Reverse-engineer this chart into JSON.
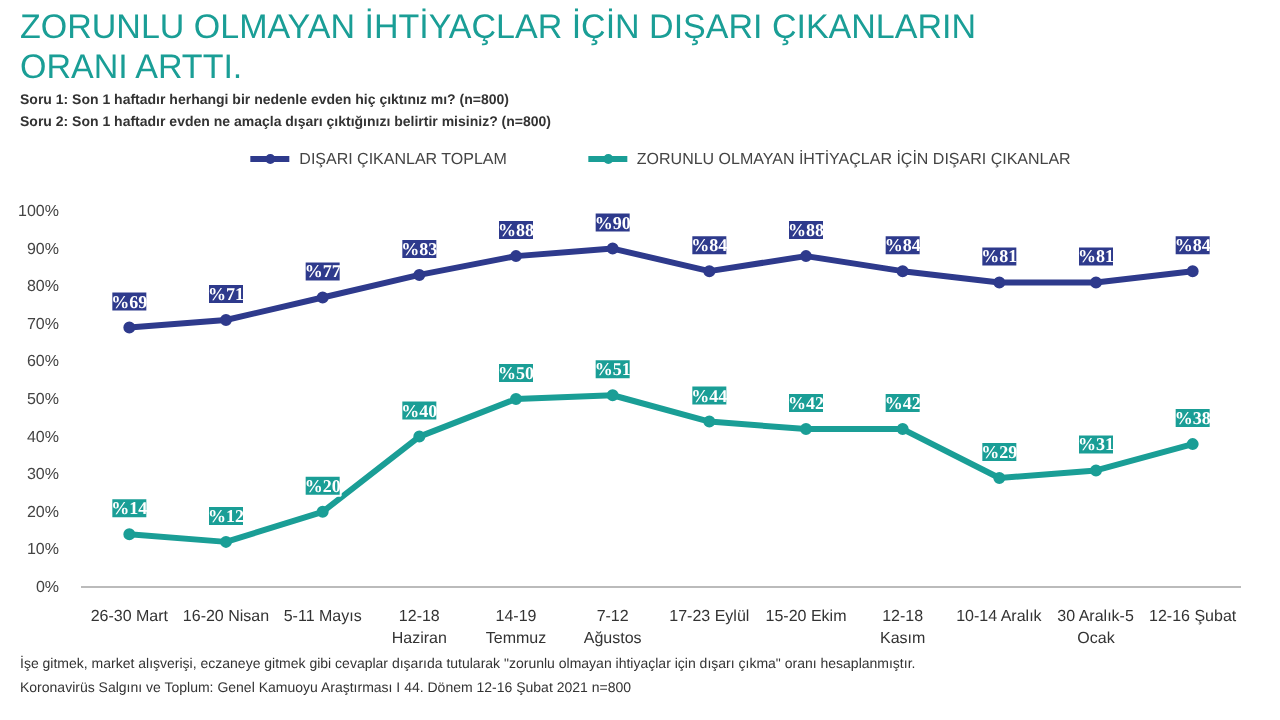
{
  "chart_data": {
    "type": "line",
    "title": "ZORUNLU OLMAYAN İHTİYAÇLAR İÇİN DIŞARI ÇIKANLARIN ORANI ARTTI.",
    "subtitle": "Soru 1: Son 1 haftadır herhangi bir nedenle evden hiç çıktınız mı? (n=800)\nSoru 2: Son 1 haftadır evden ne amaçla dışarı çıktığınızı belirtir misiniz? (n=800)",
    "categories": [
      "26-30 Mart",
      "16-20 Nisan",
      "5-11 Mayıs",
      "12-18\nHaziran",
      "14-19\nTemmuz",
      "7-12\nAğustos",
      "17-23 Eylül",
      "15-20 Ekim",
      "12-18\nKasım",
      "10-14 Aralık",
      "30 Aralık-5\nOcak",
      "12-16 Şubat"
    ],
    "series": [
      {
        "name": "DIŞARI ÇIKANLAR TOPLAM",
        "color": "#2e3a8c",
        "values": [
          69,
          71,
          77,
          83,
          88,
          90,
          84,
          88,
          84,
          81,
          81,
          84
        ],
        "value_labels": [
          "%69",
          "%71",
          "%77",
          "%83",
          "%88",
          "%90",
          "%84",
          "%88",
          "%84",
          "%81",
          "%81",
          "%84"
        ]
      },
      {
        "name": "ZORUNLU OLMAYAN İHTİYAÇLAR İÇİN DIŞARI ÇIKANLAR",
        "color": "#1a9e96",
        "values": [
          14,
          12,
          20,
          40,
          50,
          51,
          44,
          42,
          42,
          29,
          31,
          38
        ],
        "value_labels": [
          "%14",
          "%12",
          "%20",
          "%40",
          "%50",
          "%51",
          "%44",
          "%42",
          "%42",
          "%29",
          "%31",
          "%38"
        ]
      }
    ],
    "ylim": [
      0,
      100
    ],
    "yticks": [
      {
        "value": 0,
        "label": "0%"
      },
      {
        "value": 10,
        "label": "10%"
      },
      {
        "value": 20,
        "label": "20%"
      },
      {
        "value": 30,
        "label": "30%"
      },
      {
        "value": 40,
        "label": "40%"
      },
      {
        "value": 50,
        "label": "50%"
      },
      {
        "value": 60,
        "label": "60%"
      },
      {
        "value": 70,
        "label": "70%"
      },
      {
        "value": 80,
        "label": "80%"
      },
      {
        "value": 90,
        "label": "90%"
      },
      {
        "value": 100,
        "label": "100%"
      }
    ],
    "grid": false,
    "legend": "top",
    "marker": "circle",
    "line_style": "solid",
    "annotations": [
      "İşe gitmek, market alışverişi, eczaneye gitmek gibi cevaplar dışarıda tutularak \"zorunlu olmayan ihtiyaçlar için dışarı çıkma\" oranı hesaplanmıştır.",
      "Koronavirüs Salgını ve Toplum: Genel Kamuoyu Araştırması I 44. Dönem 12-16 Şubat 2021 n=800"
    ]
  }
}
